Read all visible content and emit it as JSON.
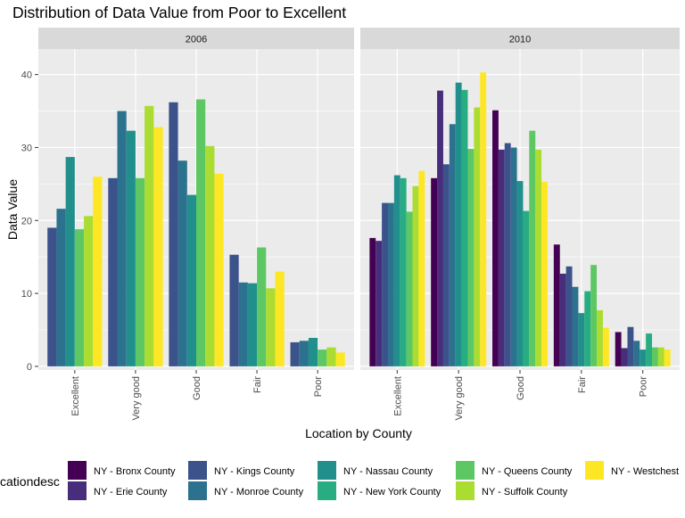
{
  "chart_data": {
    "type": "bar",
    "title": "Distribution of Data Value from Poor to Excellent",
    "xlabel": "Location by County",
    "ylabel": "Data Value",
    "ylim": [
      -0.5,
      43.5
    ],
    "yticks": [
      0,
      10,
      20,
      30,
      40
    ],
    "categories": [
      "Excellent",
      "Very good",
      "Good",
      "Fair",
      "Poor"
    ],
    "legend": {
      "title": "locationdesc",
      "title_visible": "cationdesc",
      "position": "bottom"
    },
    "colors": [
      "#440154",
      "#472D7B",
      "#3B528B",
      "#2C728E",
      "#21908C",
      "#27AD81",
      "#5DC863",
      "#AADC32",
      "#FDE725"
    ],
    "series_names": [
      "NY - Bronx County",
      "NY - Erie County",
      "NY - Kings County",
      "NY - Monroe County",
      "NY - Nassau County",
      "NY - New York County",
      "NY - Queens County",
      "NY - Suffolk County",
      "NY - Westchester County"
    ],
    "series_labels_visible": [
      "NY - Bronx County",
      "NY - Erie County",
      "NY - Kings County",
      "NY - Monroe County",
      "NY - Nassau County",
      "NY - New York County",
      "NY - Queens County",
      "NY - Suffolk County",
      "NY - Westchest"
    ],
    "panels": [
      {
        "label": "2006",
        "series": [
          2,
          3,
          4,
          6,
          7,
          8
        ],
        "values": [
          [
            19.0,
            21.6,
            28.7,
            18.8,
            20.6,
            26.0
          ],
          [
            25.8,
            35.0,
            32.3,
            25.8,
            35.7,
            32.8
          ],
          [
            36.2,
            28.2,
            23.5,
            36.6,
            30.2,
            26.4
          ],
          [
            15.3,
            11.5,
            11.4,
            16.3,
            10.7,
            13.0
          ],
          [
            3.3,
            3.5,
            3.9,
            2.3,
            2.6,
            1.9
          ]
        ]
      },
      {
        "label": "2010",
        "series": [
          0,
          1,
          2,
          3,
          4,
          5,
          6,
          7,
          8
        ],
        "values": [
          [
            17.6,
            17.2,
            22.4,
            22.4,
            26.2,
            25.8,
            21.2,
            24.7,
            26.8
          ],
          [
            25.8,
            37.8,
            27.7,
            33.2,
            38.9,
            37.9,
            29.8,
            35.5,
            40.3
          ],
          [
            35.1,
            29.7,
            30.6,
            30.0,
            25.4,
            21.3,
            32.3,
            29.7,
            25.3
          ],
          [
            16.7,
            12.7,
            13.7,
            10.9,
            7.3,
            10.3,
            13.9,
            7.7,
            5.3
          ],
          [
            4.7,
            2.5,
            5.4,
            3.5,
            2.3,
            4.5,
            2.6,
            2.6,
            2.3
          ]
        ]
      }
    ]
  }
}
